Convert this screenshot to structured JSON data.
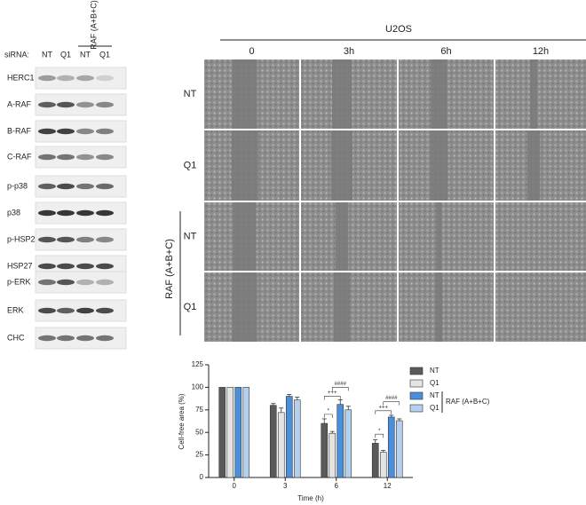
{
  "blot": {
    "lane_label": "siRNA:",
    "lanes": [
      "NT",
      "Q1",
      "NT",
      "Q1"
    ],
    "group_label": "RAF (A+B+C)",
    "proteins": [
      "HERC1",
      "A-RAF",
      "B-RAF",
      "C-RAF",
      "p-p38",
      "p38",
      "p-HSP27",
      "HSP27",
      "p-ERK",
      "ERK",
      "CHC"
    ]
  },
  "migration": {
    "cell_line": "U2OS",
    "timepoints": [
      "0",
      "3h",
      "6h",
      "12h"
    ],
    "rows": [
      "NT",
      "Q1",
      "NT",
      "Q1"
    ],
    "group_label": "RAF (A+B+C)"
  },
  "chart_data": {
    "type": "bar",
    "x_label": "Time (h)",
    "y_label": "Cell-free area (%)",
    "categories": [
      "0",
      "3",
      "6",
      "12"
    ],
    "series": [
      {
        "name": "NT",
        "color": "#5a5a5a",
        "values": [
          100,
          80,
          60,
          38
        ],
        "errors": [
          0,
          2,
          5,
          4
        ]
      },
      {
        "name": "Q1",
        "color": "#e4e4e4",
        "values": [
          100,
          72,
          49,
          28
        ],
        "errors": [
          0,
          5,
          2,
          2
        ]
      },
      {
        "name": "NT",
        "color": "#4a8fdc",
        "values": [
          100,
          90,
          81,
          67
        ],
        "errors": [
          0,
          2,
          5,
          2
        ]
      },
      {
        "name": "Q1",
        "color": "#b4d0ee",
        "values": [
          100,
          86,
          75,
          63
        ],
        "errors": [
          0,
          3,
          4,
          2
        ]
      }
    ],
    "legend_group_label": "RAF (A+B+C)",
    "annotations": [
      "*",
      "+++",
      "####",
      "*",
      "+++",
      "####"
    ],
    "ylim": [
      0,
      125
    ],
    "yticks": [
      0,
      25,
      50,
      75,
      100,
      125
    ]
  }
}
